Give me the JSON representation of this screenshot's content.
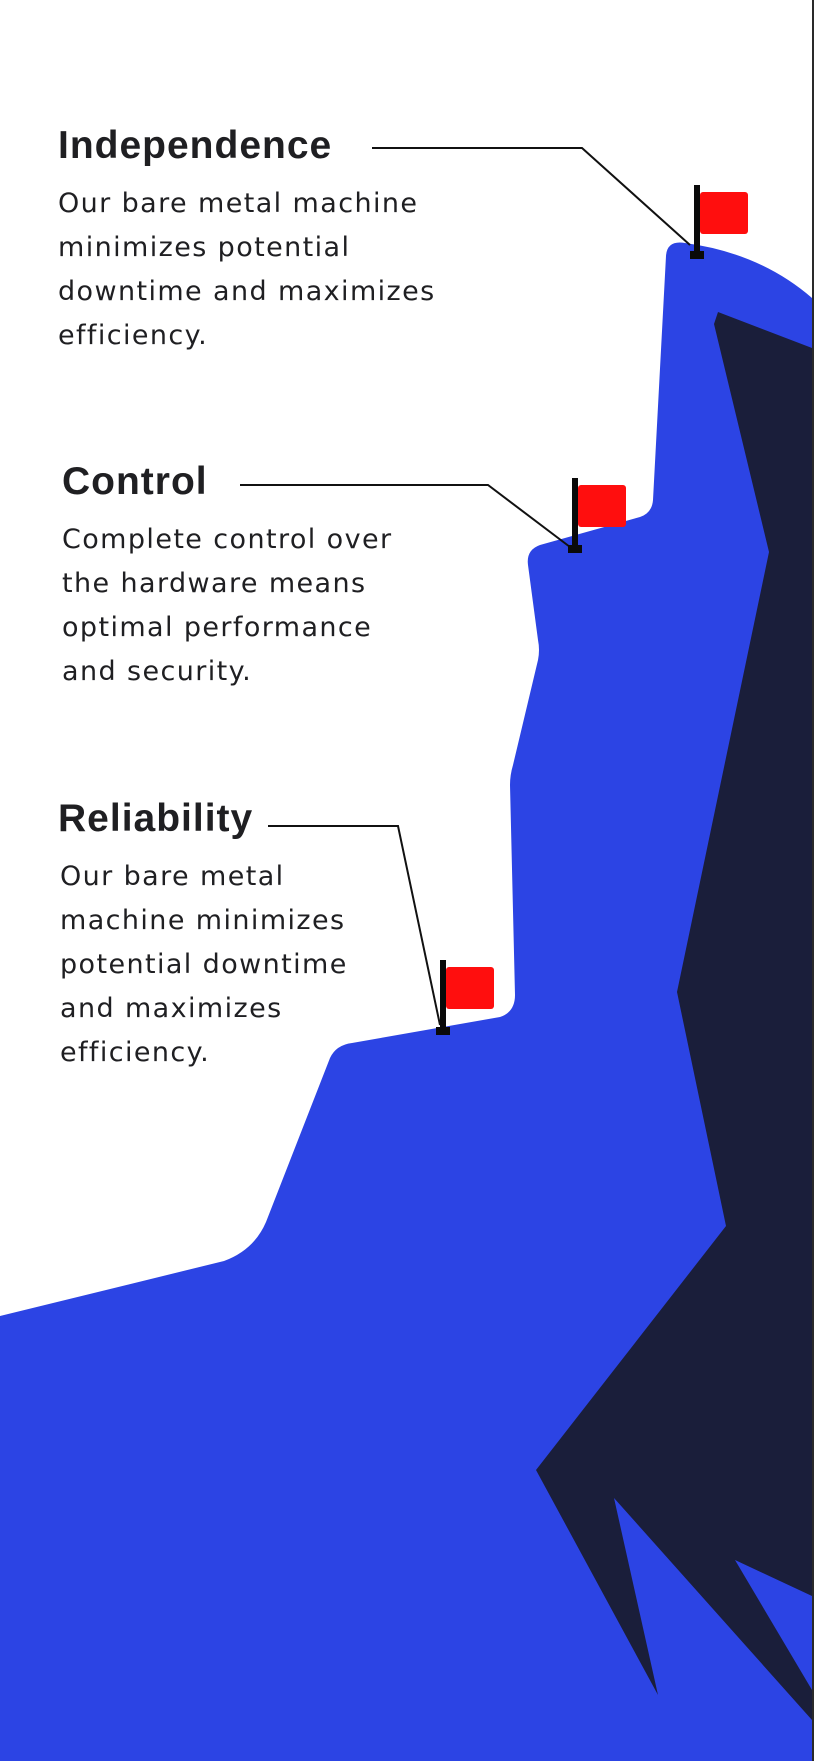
{
  "colors": {
    "mountain_primary": "#2c44e4",
    "mountain_shadow": "#1a1e3a",
    "flag": "#ff0e0e",
    "pole": "#0a0a0a",
    "text": "#1f1f22",
    "background": "#ffffff"
  },
  "features": [
    {
      "title": "Independence",
      "description": "Our bare metal machine minimizes potential downtime and maximizes efficiency."
    },
    {
      "title": "Control",
      "description": "Complete control over the hardware means optimal performance and security."
    },
    {
      "title": "Reliability",
      "description": "Our bare metal machine minimizes potential downtime and maximizes efficiency."
    }
  ],
  "icons": {
    "summit_flag": "flag-icon"
  }
}
